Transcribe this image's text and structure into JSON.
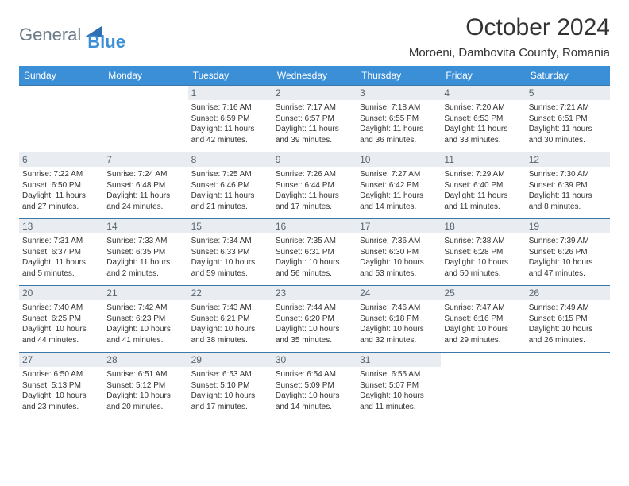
{
  "brand": {
    "general": "General",
    "blue": "Blue"
  },
  "title": "October 2024",
  "location": "Moroeni, Dambovita County, Romania",
  "colors": {
    "header_bg": "#3b8fd6",
    "header_text": "#ffffff",
    "daynum_bg": "#e9edf1",
    "daynum_text": "#586470",
    "row_border": "#3b78a8",
    "body_text": "#333333",
    "logo_gray": "#6b7a86",
    "logo_blue": "#3b8fd6"
  },
  "dow": [
    "Sunday",
    "Monday",
    "Tuesday",
    "Wednesday",
    "Thursday",
    "Friday",
    "Saturday"
  ],
  "weeks": [
    [
      {
        "n": "",
        "sr": "",
        "ss": "",
        "d1": "",
        "d2": ""
      },
      {
        "n": "",
        "sr": "",
        "ss": "",
        "d1": "",
        "d2": ""
      },
      {
        "n": "1",
        "sr": "Sunrise: 7:16 AM",
        "ss": "Sunset: 6:59 PM",
        "d1": "Daylight: 11 hours",
        "d2": "and 42 minutes."
      },
      {
        "n": "2",
        "sr": "Sunrise: 7:17 AM",
        "ss": "Sunset: 6:57 PM",
        "d1": "Daylight: 11 hours",
        "d2": "and 39 minutes."
      },
      {
        "n": "3",
        "sr": "Sunrise: 7:18 AM",
        "ss": "Sunset: 6:55 PM",
        "d1": "Daylight: 11 hours",
        "d2": "and 36 minutes."
      },
      {
        "n": "4",
        "sr": "Sunrise: 7:20 AM",
        "ss": "Sunset: 6:53 PM",
        "d1": "Daylight: 11 hours",
        "d2": "and 33 minutes."
      },
      {
        "n": "5",
        "sr": "Sunrise: 7:21 AM",
        "ss": "Sunset: 6:51 PM",
        "d1": "Daylight: 11 hours",
        "d2": "and 30 minutes."
      }
    ],
    [
      {
        "n": "6",
        "sr": "Sunrise: 7:22 AM",
        "ss": "Sunset: 6:50 PM",
        "d1": "Daylight: 11 hours",
        "d2": "and 27 minutes."
      },
      {
        "n": "7",
        "sr": "Sunrise: 7:24 AM",
        "ss": "Sunset: 6:48 PM",
        "d1": "Daylight: 11 hours",
        "d2": "and 24 minutes."
      },
      {
        "n": "8",
        "sr": "Sunrise: 7:25 AM",
        "ss": "Sunset: 6:46 PM",
        "d1": "Daylight: 11 hours",
        "d2": "and 21 minutes."
      },
      {
        "n": "9",
        "sr": "Sunrise: 7:26 AM",
        "ss": "Sunset: 6:44 PM",
        "d1": "Daylight: 11 hours",
        "d2": "and 17 minutes."
      },
      {
        "n": "10",
        "sr": "Sunrise: 7:27 AM",
        "ss": "Sunset: 6:42 PM",
        "d1": "Daylight: 11 hours",
        "d2": "and 14 minutes."
      },
      {
        "n": "11",
        "sr": "Sunrise: 7:29 AM",
        "ss": "Sunset: 6:40 PM",
        "d1": "Daylight: 11 hours",
        "d2": "and 11 minutes."
      },
      {
        "n": "12",
        "sr": "Sunrise: 7:30 AM",
        "ss": "Sunset: 6:39 PM",
        "d1": "Daylight: 11 hours",
        "d2": "and 8 minutes."
      }
    ],
    [
      {
        "n": "13",
        "sr": "Sunrise: 7:31 AM",
        "ss": "Sunset: 6:37 PM",
        "d1": "Daylight: 11 hours",
        "d2": "and 5 minutes."
      },
      {
        "n": "14",
        "sr": "Sunrise: 7:33 AM",
        "ss": "Sunset: 6:35 PM",
        "d1": "Daylight: 11 hours",
        "d2": "and 2 minutes."
      },
      {
        "n": "15",
        "sr": "Sunrise: 7:34 AM",
        "ss": "Sunset: 6:33 PM",
        "d1": "Daylight: 10 hours",
        "d2": "and 59 minutes."
      },
      {
        "n": "16",
        "sr": "Sunrise: 7:35 AM",
        "ss": "Sunset: 6:31 PM",
        "d1": "Daylight: 10 hours",
        "d2": "and 56 minutes."
      },
      {
        "n": "17",
        "sr": "Sunrise: 7:36 AM",
        "ss": "Sunset: 6:30 PM",
        "d1": "Daylight: 10 hours",
        "d2": "and 53 minutes."
      },
      {
        "n": "18",
        "sr": "Sunrise: 7:38 AM",
        "ss": "Sunset: 6:28 PM",
        "d1": "Daylight: 10 hours",
        "d2": "and 50 minutes."
      },
      {
        "n": "19",
        "sr": "Sunrise: 7:39 AM",
        "ss": "Sunset: 6:26 PM",
        "d1": "Daylight: 10 hours",
        "d2": "and 47 minutes."
      }
    ],
    [
      {
        "n": "20",
        "sr": "Sunrise: 7:40 AM",
        "ss": "Sunset: 6:25 PM",
        "d1": "Daylight: 10 hours",
        "d2": "and 44 minutes."
      },
      {
        "n": "21",
        "sr": "Sunrise: 7:42 AM",
        "ss": "Sunset: 6:23 PM",
        "d1": "Daylight: 10 hours",
        "d2": "and 41 minutes."
      },
      {
        "n": "22",
        "sr": "Sunrise: 7:43 AM",
        "ss": "Sunset: 6:21 PM",
        "d1": "Daylight: 10 hours",
        "d2": "and 38 minutes."
      },
      {
        "n": "23",
        "sr": "Sunrise: 7:44 AM",
        "ss": "Sunset: 6:20 PM",
        "d1": "Daylight: 10 hours",
        "d2": "and 35 minutes."
      },
      {
        "n": "24",
        "sr": "Sunrise: 7:46 AM",
        "ss": "Sunset: 6:18 PM",
        "d1": "Daylight: 10 hours",
        "d2": "and 32 minutes."
      },
      {
        "n": "25",
        "sr": "Sunrise: 7:47 AM",
        "ss": "Sunset: 6:16 PM",
        "d1": "Daylight: 10 hours",
        "d2": "and 29 minutes."
      },
      {
        "n": "26",
        "sr": "Sunrise: 7:49 AM",
        "ss": "Sunset: 6:15 PM",
        "d1": "Daylight: 10 hours",
        "d2": "and 26 minutes."
      }
    ],
    [
      {
        "n": "27",
        "sr": "Sunrise: 6:50 AM",
        "ss": "Sunset: 5:13 PM",
        "d1": "Daylight: 10 hours",
        "d2": "and 23 minutes."
      },
      {
        "n": "28",
        "sr": "Sunrise: 6:51 AM",
        "ss": "Sunset: 5:12 PM",
        "d1": "Daylight: 10 hours",
        "d2": "and 20 minutes."
      },
      {
        "n": "29",
        "sr": "Sunrise: 6:53 AM",
        "ss": "Sunset: 5:10 PM",
        "d1": "Daylight: 10 hours",
        "d2": "and 17 minutes."
      },
      {
        "n": "30",
        "sr": "Sunrise: 6:54 AM",
        "ss": "Sunset: 5:09 PM",
        "d1": "Daylight: 10 hours",
        "d2": "and 14 minutes."
      },
      {
        "n": "31",
        "sr": "Sunrise: 6:55 AM",
        "ss": "Sunset: 5:07 PM",
        "d1": "Daylight: 10 hours",
        "d2": "and 11 minutes."
      },
      {
        "n": "",
        "sr": "",
        "ss": "",
        "d1": "",
        "d2": ""
      },
      {
        "n": "",
        "sr": "",
        "ss": "",
        "d1": "",
        "d2": ""
      }
    ]
  ]
}
